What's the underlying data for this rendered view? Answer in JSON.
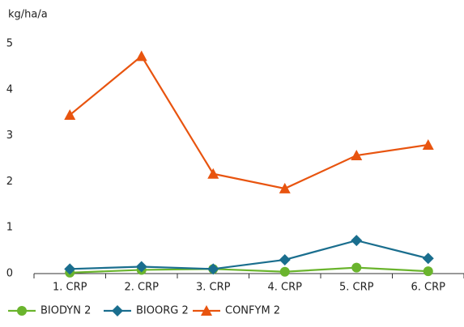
{
  "chart_data": {
    "type": "line",
    "y_label": "kg/ha/a",
    "categories": [
      "1. CRP",
      "2. CRP",
      "3. CRP",
      "4. CRP",
      "5. CRP",
      "6. CRP"
    ],
    "series": [
      {
        "name": "BIODYN 2",
        "color": "#6ab42d",
        "marker": "circle",
        "values": [
          0.02,
          0.08,
          0.1,
          0.04,
          0.13,
          0.05
        ]
      },
      {
        "name": "BIOORG 2",
        "color": "#1a6e8e",
        "marker": "diamond",
        "values": [
          0.1,
          0.15,
          0.1,
          0.3,
          0.72,
          0.33
        ]
      },
      {
        "name": "CONFYM 2",
        "color": "#e8540f",
        "marker": "triangle",
        "values": [
          3.45,
          4.73,
          2.17,
          1.85,
          2.57,
          2.8
        ]
      }
    ],
    "ylim": [
      0,
      5
    ],
    "yticks": [
      0,
      1,
      2,
      3,
      4,
      5
    ],
    "grid": false,
    "legend": "bottom"
  }
}
